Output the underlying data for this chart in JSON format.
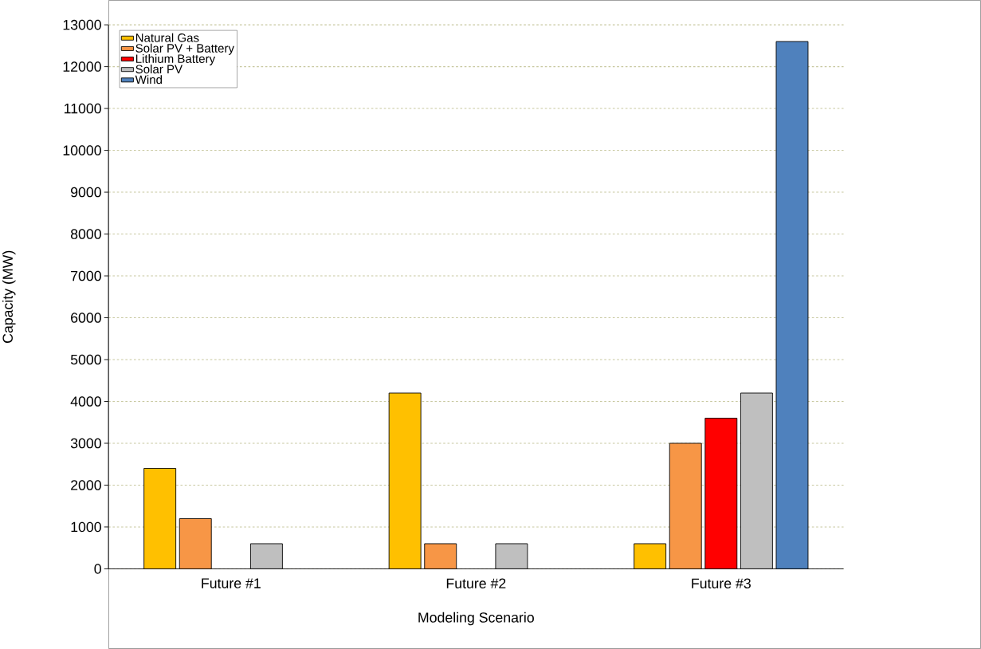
{
  "chart_data": {
    "type": "bar",
    "xlabel": "Modeling Scenario",
    "ylabel": "Capacity (MW)",
    "categories": [
      "Future #1",
      "Future #2",
      "Future #3"
    ],
    "series": [
      {
        "name": "Natural Gas",
        "color": "#ffc000",
        "values": [
          2400,
          4200,
          600
        ]
      },
      {
        "name": "Solar PV + Battery",
        "color": "#f79646",
        "values": [
          1200,
          600,
          3000
        ]
      },
      {
        "name": "Lithium Battery",
        "color": "#ff0000",
        "values": [
          null,
          null,
          3600
        ]
      },
      {
        "name": "Solar PV",
        "color": "#bfbfbf",
        "values": [
          600,
          600,
          4200
        ]
      },
      {
        "name": "Wind",
        "color": "#4f81bd",
        "values": [
          null,
          null,
          12600
        ]
      }
    ],
    "ylim": [
      0,
      13000
    ],
    "yticks": [
      0,
      1000,
      2000,
      3000,
      4000,
      5000,
      6000,
      7000,
      8000,
      9000,
      10000,
      11000,
      12000,
      13000
    ],
    "grid": "y",
    "legend": "top left"
  }
}
